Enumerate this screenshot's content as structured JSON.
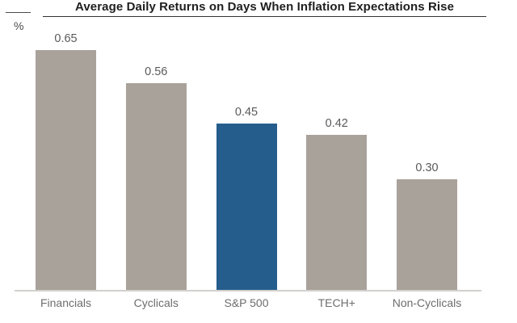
{
  "header": {
    "title": "Average Daily Returns on Days When Inflation Expectations Rise",
    "unit_label": "%"
  },
  "chart_data": {
    "type": "bar",
    "title": "Average Daily Returns on Days When Inflation Expectations Rise",
    "categories": [
      "Financials",
      "Cyclicals",
      "S&P 500",
      "TECH+",
      "Non-Cyclicals"
    ],
    "values": [
      0.65,
      0.56,
      0.45,
      0.42,
      0.3
    ],
    "value_labels": [
      "0.65",
      "0.56",
      "0.45",
      "0.42",
      "0.30"
    ],
    "xlabel": "",
    "ylabel": "%",
    "ylim": [
      0,
      0.7
    ],
    "grid": false,
    "legend": false,
    "y_axis_ticks_visible": false,
    "highlight_category": "S&P 500",
    "colors": {
      "default_bar": "#a9a29b",
      "highlight_bar": "#255e8c",
      "title_text": "#1e1e1e",
      "title_underline": "#333333",
      "value_label_text": "#595959",
      "category_label_text": "#6d6d6d",
      "axis_line": "#d2d0cd",
      "background": "#ffffff"
    }
  }
}
